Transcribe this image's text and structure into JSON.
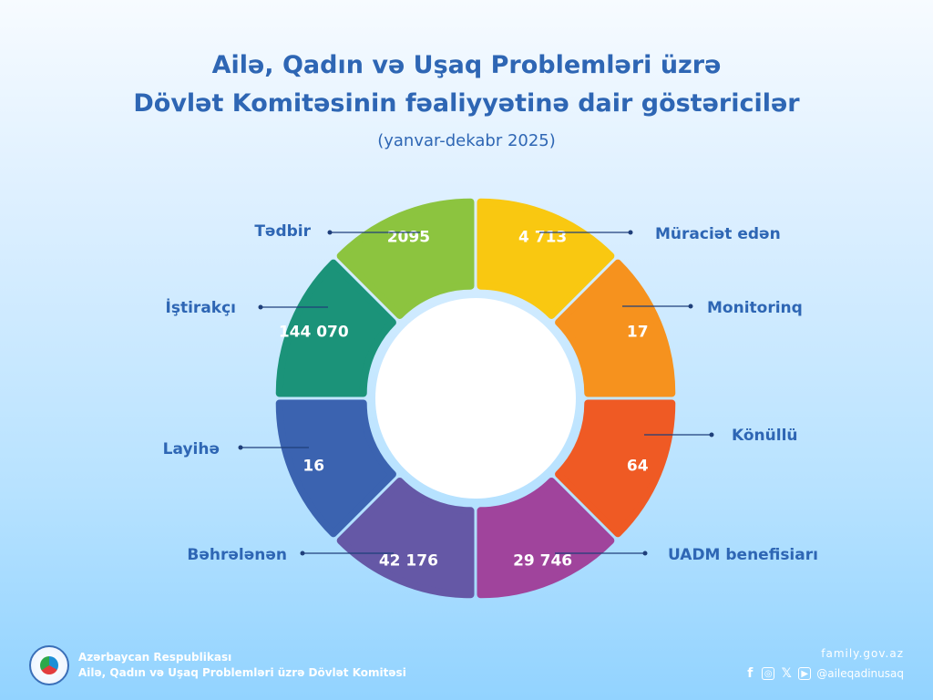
{
  "title_line1": "Ailə, Qadın və Uşaq Problemləri üzrə",
  "title_line2": "Dövlət Komitəsinin fəaliyyətinə dair göstəricilər",
  "subtitle": "(yanvar-dekabr 2025)",
  "chart_data": {
    "type": "pie",
    "categories": [
      "Müraciət  edən",
      "Monitorinq",
      "Könüllü",
      "UADM benefisiarı",
      "Bəhrələnən",
      "Layihə",
      "İştirakçı",
      "Tədbir"
    ],
    "values": [
      4713,
      17,
      64,
      29746,
      42176,
      16,
      144070,
      2095
    ],
    "value_labels": [
      "4 713",
      "17",
      "64",
      "29 746",
      "42 176",
      "16",
      "144 070",
      "2095"
    ],
    "colors": [
      "#f9c811",
      "#f6921e",
      "#ef5a24",
      "#a0449c",
      "#6558a6",
      "#3b63b0",
      "#1b9379",
      "#8cc43f"
    ]
  },
  "footer": {
    "org_line1": "Azərbaycan Respublikası",
    "org_line2": "Ailə, Qadın və Uşaq Problemləri üzrə Dövlət Komitəsi",
    "site": "family.gov.az",
    "handle": "@aileqadinusaq",
    "social_icons": [
      "facebook-icon",
      "instagram-icon",
      "x-icon",
      "youtube-icon"
    ]
  }
}
